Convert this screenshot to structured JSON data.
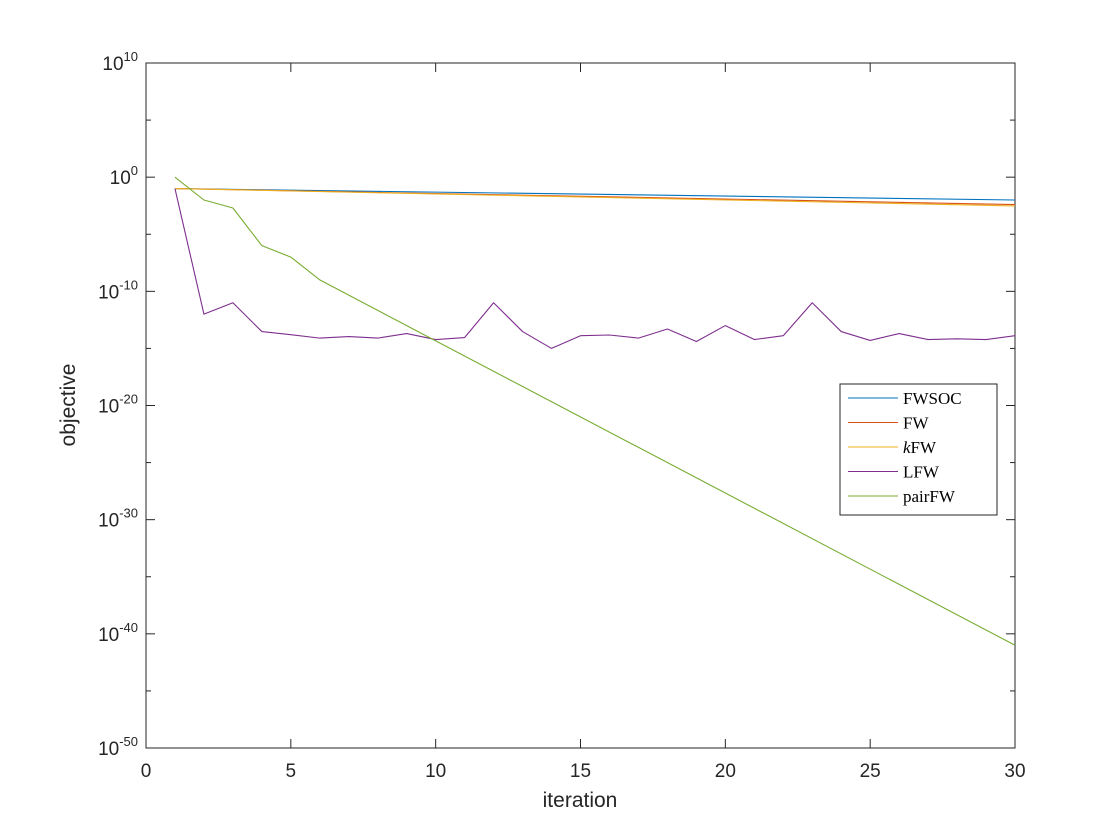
{
  "chart_data": {
    "type": "line",
    "xlabel": "iteration",
    "ylabel": "objective",
    "xlim": [
      0,
      30
    ],
    "ylim": [
      1e-50,
      10000000000.0
    ],
    "yscale": "log",
    "grid": false,
    "legend_position": "right",
    "x_ticks": [
      0,
      5,
      10,
      15,
      20,
      25,
      30
    ],
    "x_tick_labels": [
      "0",
      "5",
      "10",
      "15",
      "20",
      "25",
      "30"
    ],
    "y_ticks_exp": [
      -50,
      -40,
      -30,
      -20,
      -10,
      0,
      10
    ],
    "y_tick_labels": [
      {
        "base": "10",
        "exp": "-50"
      },
      {
        "base": "10",
        "exp": "-40"
      },
      {
        "base": "10",
        "exp": "-30"
      },
      {
        "base": "10",
        "exp": "-20"
      },
      {
        "base": "10",
        "exp": "-10"
      },
      {
        "base": "10",
        "exp": "0"
      },
      {
        "base": "10",
        "exp": "10"
      }
    ],
    "series": [
      {
        "name": "FWSOC",
        "color": "#0072BD",
        "x": [
          1,
          30
        ],
        "y": [
          0.1,
          0.01
        ]
      },
      {
        "name": "FW",
        "color": "#D95319",
        "x": [
          1,
          30
        ],
        "y": [
          0.1,
          0.004
        ]
      },
      {
        "name": "kFW",
        "color": "#EDB120",
        "x": [
          1,
          30
        ],
        "y": [
          0.1,
          0.003
        ]
      },
      {
        "name": "LFW",
        "color": "#7E2F8E",
        "x": [
          1,
          2,
          3,
          4,
          5,
          6,
          7,
          8,
          9,
          10,
          11,
          12,
          13,
          14,
          15,
          16,
          17,
          18,
          19,
          20,
          21,
          22,
          23,
          24,
          25,
          26,
          27,
          28,
          29,
          30
        ],
        "y": [
          0.1,
          1e-12,
          1e-11,
          3e-14,
          1.6e-14,
          8e-15,
          1.1e-14,
          8e-15,
          2e-14,
          6e-15,
          9e-15,
          1e-11,
          3e-14,
          1e-15,
          1.3e-14,
          1.5e-14,
          8e-15,
          5e-14,
          4e-15,
          1e-13,
          6e-15,
          1.3e-14,
          1e-11,
          3e-14,
          5e-15,
          2e-14,
          6e-15,
          7e-15,
          6e-15,
          1.3e-14
        ]
      },
      {
        "name": "pairFW",
        "color": "#77AC30",
        "x": [
          1,
          2,
          3,
          4,
          5,
          6,
          30
        ],
        "y": [
          1,
          0.01,
          0.002,
          1e-06,
          1e-07,
          1e-09,
          1e-41
        ]
      }
    ]
  }
}
